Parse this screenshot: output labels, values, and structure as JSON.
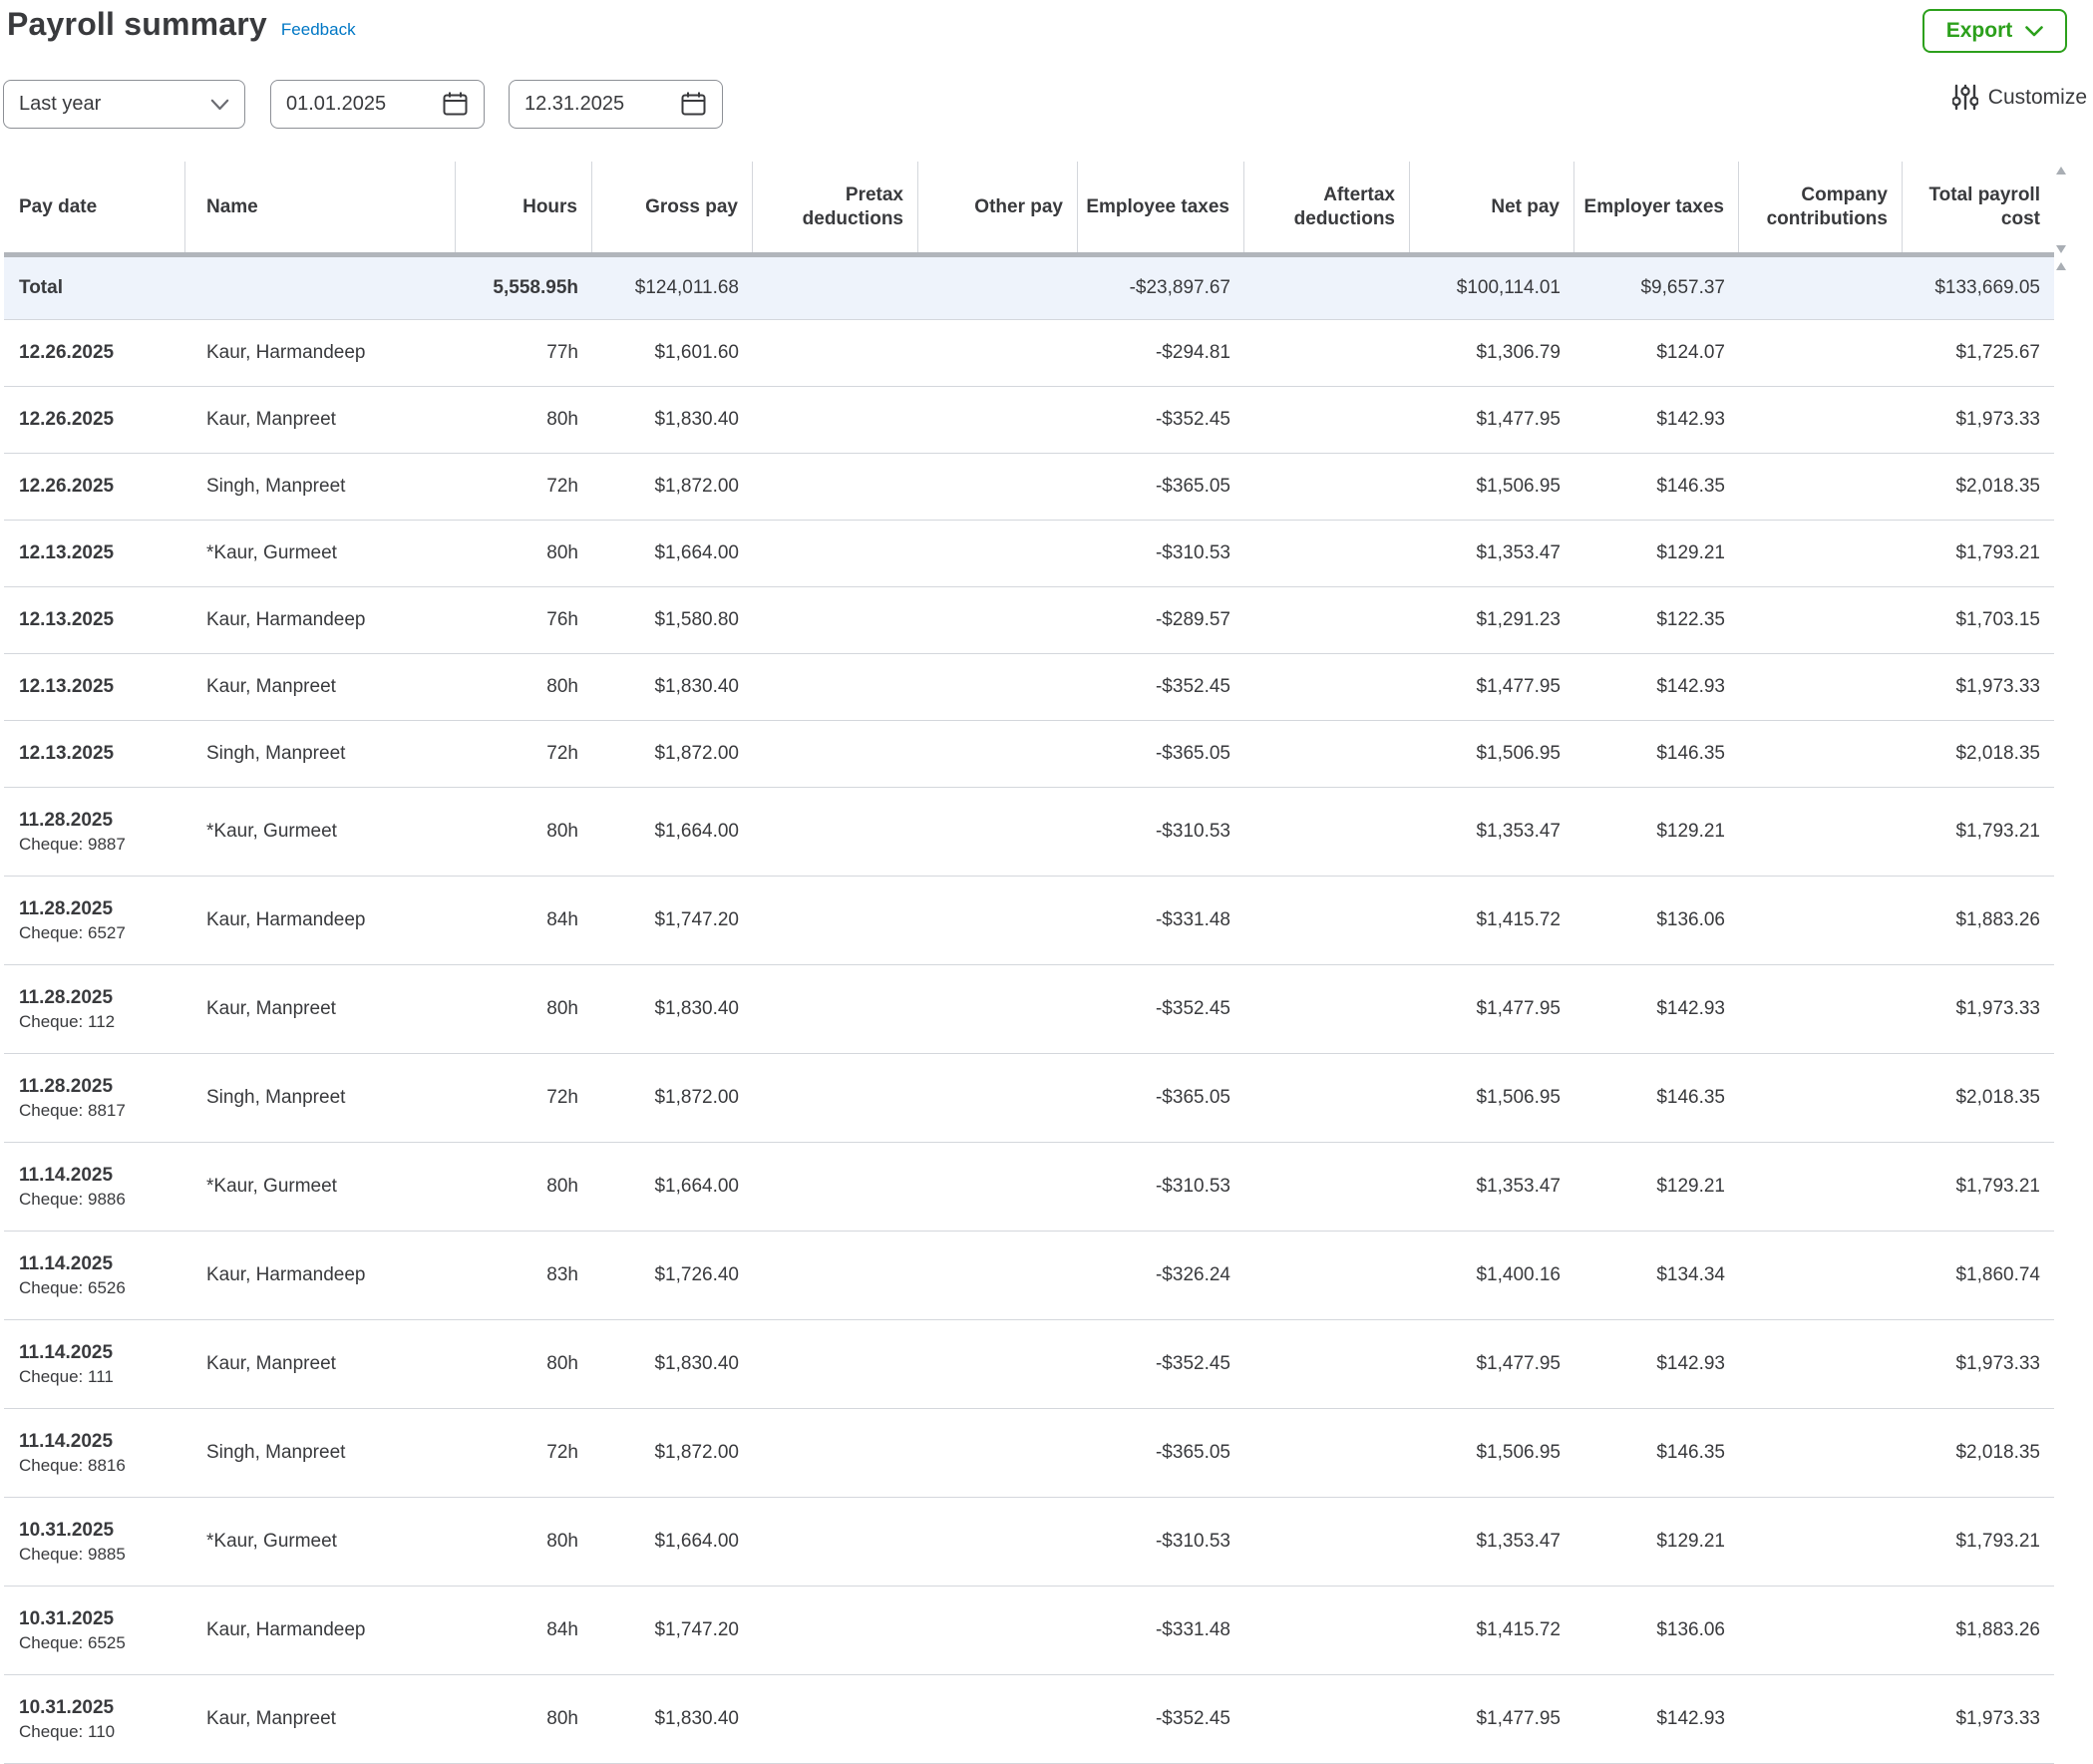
{
  "header": {
    "title": "Payroll summary",
    "feedback_label": "Feedback",
    "export_label": "Export",
    "customize_label": "Customize"
  },
  "filters": {
    "range_value": "Last year",
    "start_date": "01.01.2025",
    "end_date": "12.31.2025"
  },
  "colors": {
    "accent_green": "#2ca01c",
    "link_blue": "#0077c5",
    "text": "#393a3d",
    "row_border": "#d4d7dc",
    "total_row_bg": "#eef3fb",
    "scrollbar": "#b1b5bb"
  },
  "table": {
    "columns": [
      {
        "key": "pay_date",
        "label": "Pay date",
        "align": "left"
      },
      {
        "key": "name",
        "label": "Name",
        "align": "left"
      },
      {
        "key": "hours",
        "label": "Hours",
        "align": "right"
      },
      {
        "key": "gross_pay",
        "label": "Gross pay",
        "align": "right"
      },
      {
        "key": "pretax_deductions",
        "label": "Pretax deductions",
        "align": "right"
      },
      {
        "key": "other_pay",
        "label": "Other pay",
        "align": "right"
      },
      {
        "key": "employee_taxes",
        "label": "Employee taxes",
        "align": "right"
      },
      {
        "key": "aftertax_deductions",
        "label": "Aftertax deductions",
        "align": "right"
      },
      {
        "key": "net_pay",
        "label": "Net pay",
        "align": "right"
      },
      {
        "key": "employer_taxes",
        "label": "Employer taxes",
        "align": "right"
      },
      {
        "key": "company_contributions",
        "label": "Company contributions",
        "align": "right"
      },
      {
        "key": "total_payroll_cost",
        "label": "Total payroll cost",
        "align": "right"
      }
    ],
    "total_row": {
      "pay_date": "Total",
      "hours": "5,558.95h",
      "gross_pay": "$124,011.68",
      "employee_taxes": "-$23,897.67",
      "net_pay": "$100,114.01",
      "employer_taxes": "$9,657.37",
      "total_payroll_cost": "$133,669.05"
    },
    "rows": [
      {
        "pay_date": "12.26.2025",
        "cheque": "",
        "name": "Kaur, Harmandeep",
        "hours": "77h",
        "gross_pay": "$1,601.60",
        "employee_taxes": "-$294.81",
        "net_pay": "$1,306.79",
        "employer_taxes": "$124.07",
        "total_payroll_cost": "$1,725.67"
      },
      {
        "pay_date": "12.26.2025",
        "cheque": "",
        "name": "Kaur, Manpreet",
        "hours": "80h",
        "gross_pay": "$1,830.40",
        "employee_taxes": "-$352.45",
        "net_pay": "$1,477.95",
        "employer_taxes": "$142.93",
        "total_payroll_cost": "$1,973.33"
      },
      {
        "pay_date": "12.26.2025",
        "cheque": "",
        "name": "Singh, Manpreet",
        "hours": "72h",
        "gross_pay": "$1,872.00",
        "employee_taxes": "-$365.05",
        "net_pay": "$1,506.95",
        "employer_taxes": "$146.35",
        "total_payroll_cost": "$2,018.35"
      },
      {
        "pay_date": "12.13.2025",
        "cheque": "",
        "name": "*Kaur, Gurmeet",
        "hours": "80h",
        "gross_pay": "$1,664.00",
        "employee_taxes": "-$310.53",
        "net_pay": "$1,353.47",
        "employer_taxes": "$129.21",
        "total_payroll_cost": "$1,793.21"
      },
      {
        "pay_date": "12.13.2025",
        "cheque": "",
        "name": "Kaur, Harmandeep",
        "hours": "76h",
        "gross_pay": "$1,580.80",
        "employee_taxes": "-$289.57",
        "net_pay": "$1,291.23",
        "employer_taxes": "$122.35",
        "total_payroll_cost": "$1,703.15"
      },
      {
        "pay_date": "12.13.2025",
        "cheque": "",
        "name": "Kaur, Manpreet",
        "hours": "80h",
        "gross_pay": "$1,830.40",
        "employee_taxes": "-$352.45",
        "net_pay": "$1,477.95",
        "employer_taxes": "$142.93",
        "total_payroll_cost": "$1,973.33"
      },
      {
        "pay_date": "12.13.2025",
        "cheque": "",
        "name": "Singh, Manpreet",
        "hours": "72h",
        "gross_pay": "$1,872.00",
        "employee_taxes": "-$365.05",
        "net_pay": "$1,506.95",
        "employer_taxes": "$146.35",
        "total_payroll_cost": "$2,018.35"
      },
      {
        "pay_date": "11.28.2025",
        "cheque": "Cheque: 9887",
        "name": "*Kaur, Gurmeet",
        "hours": "80h",
        "gross_pay": "$1,664.00",
        "employee_taxes": "-$310.53",
        "net_pay": "$1,353.47",
        "employer_taxes": "$129.21",
        "total_payroll_cost": "$1,793.21"
      },
      {
        "pay_date": "11.28.2025",
        "cheque": "Cheque: 6527",
        "name": "Kaur, Harmandeep",
        "hours": "84h",
        "gross_pay": "$1,747.20",
        "employee_taxes": "-$331.48",
        "net_pay": "$1,415.72",
        "employer_taxes": "$136.06",
        "total_payroll_cost": "$1,883.26"
      },
      {
        "pay_date": "11.28.2025",
        "cheque": "Cheque: 112",
        "name": "Kaur, Manpreet",
        "hours": "80h",
        "gross_pay": "$1,830.40",
        "employee_taxes": "-$352.45",
        "net_pay": "$1,477.95",
        "employer_taxes": "$142.93",
        "total_payroll_cost": "$1,973.33"
      },
      {
        "pay_date": "11.28.2025",
        "cheque": "Cheque: 8817",
        "name": "Singh, Manpreet",
        "hours": "72h",
        "gross_pay": "$1,872.00",
        "employee_taxes": "-$365.05",
        "net_pay": "$1,506.95",
        "employer_taxes": "$146.35",
        "total_payroll_cost": "$2,018.35"
      },
      {
        "pay_date": "11.14.2025",
        "cheque": "Cheque: 9886",
        "name": "*Kaur, Gurmeet",
        "hours": "80h",
        "gross_pay": "$1,664.00",
        "employee_taxes": "-$310.53",
        "net_pay": "$1,353.47",
        "employer_taxes": "$129.21",
        "total_payroll_cost": "$1,793.21"
      },
      {
        "pay_date": "11.14.2025",
        "cheque": "Cheque: 6526",
        "name": "Kaur, Harmandeep",
        "hours": "83h",
        "gross_pay": "$1,726.40",
        "employee_taxes": "-$326.24",
        "net_pay": "$1,400.16",
        "employer_taxes": "$134.34",
        "total_payroll_cost": "$1,860.74"
      },
      {
        "pay_date": "11.14.2025",
        "cheque": "Cheque: 111",
        "name": "Kaur, Manpreet",
        "hours": "80h",
        "gross_pay": "$1,830.40",
        "employee_taxes": "-$352.45",
        "net_pay": "$1,477.95",
        "employer_taxes": "$142.93",
        "total_payroll_cost": "$1,973.33"
      },
      {
        "pay_date": "11.14.2025",
        "cheque": "Cheque: 8816",
        "name": "Singh, Manpreet",
        "hours": "72h",
        "gross_pay": "$1,872.00",
        "employee_taxes": "-$365.05",
        "net_pay": "$1,506.95",
        "employer_taxes": "$146.35",
        "total_payroll_cost": "$2,018.35"
      },
      {
        "pay_date": "10.31.2025",
        "cheque": "Cheque: 9885",
        "name": "*Kaur, Gurmeet",
        "hours": "80h",
        "gross_pay": "$1,664.00",
        "employee_taxes": "-$310.53",
        "net_pay": "$1,353.47",
        "employer_taxes": "$129.21",
        "total_payroll_cost": "$1,793.21"
      },
      {
        "pay_date": "10.31.2025",
        "cheque": "Cheque: 6525",
        "name": "Kaur, Harmandeep",
        "hours": "84h",
        "gross_pay": "$1,747.20",
        "employee_taxes": "-$331.48",
        "net_pay": "$1,415.72",
        "employer_taxes": "$136.06",
        "total_payroll_cost": "$1,883.26"
      },
      {
        "pay_date": "10.31.2025",
        "cheque": "Cheque: 110",
        "name": "Kaur, Manpreet",
        "hours": "80h",
        "gross_pay": "$1,830.40",
        "employee_taxes": "-$352.45",
        "net_pay": "$1,477.95",
        "employer_taxes": "$142.93",
        "total_payroll_cost": "$1,973.33"
      }
    ]
  }
}
